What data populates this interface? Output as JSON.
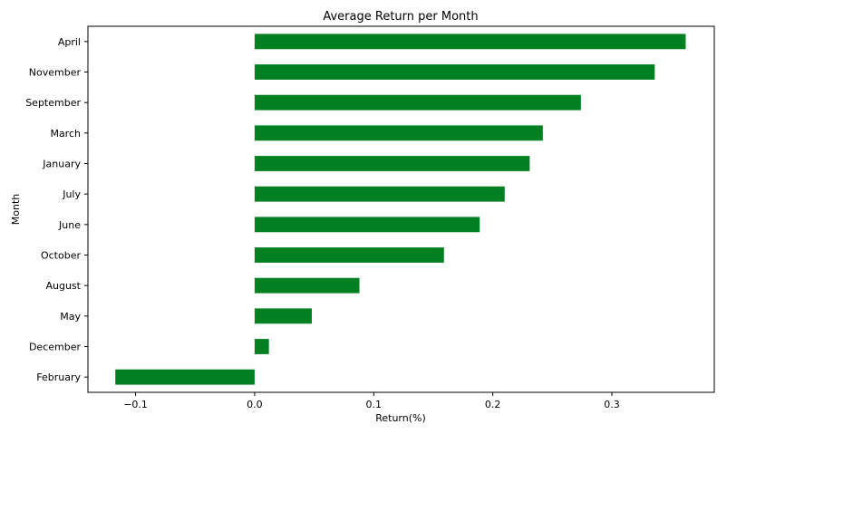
{
  "chart_data": {
    "type": "bar",
    "orientation": "horizontal",
    "title": "Average Return per Month",
    "xlabel": "Return(%)",
    "ylabel": "Month",
    "categories": [
      "April",
      "November",
      "September",
      "March",
      "January",
      "July",
      "June",
      "October",
      "August",
      "May",
      "December",
      "February"
    ],
    "values": [
      0.362,
      0.336,
      0.274,
      0.242,
      0.231,
      0.21,
      0.189,
      0.159,
      0.088,
      0.048,
      0.012,
      -0.117
    ],
    "xlim": [
      -0.14,
      0.386
    ],
    "xticks": [
      -0.1,
      0.0,
      0.1,
      0.2,
      0.3
    ],
    "xtick_labels": [
      "−0.1",
      "0.0",
      "0.1",
      "0.2",
      "0.3"
    ],
    "grid": false,
    "bar_color": "#008020"
  }
}
